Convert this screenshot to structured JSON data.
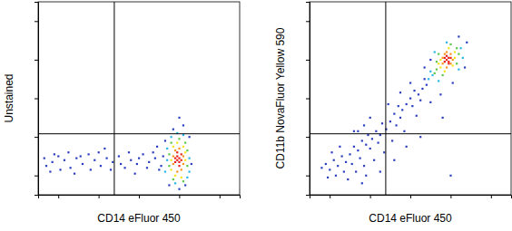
{
  "chart_data": [
    {
      "type": "scatter",
      "x_label": "CD14 eFluor 450",
      "y_label": "Unstained",
      "xlim": [
        0,
        100
      ],
      "ylim": [
        0,
        100
      ],
      "xticks": [
        10,
        30,
        50,
        70,
        90
      ],
      "yticks": [
        10,
        30,
        50,
        70,
        90
      ],
      "tick_labels": false,
      "gates": {
        "x": 37.8,
        "y": 31.6
      },
      "series": [
        {
          "color": "#2b3fc0",
          "x": [
            62,
            76,
            63,
            67,
            73,
            61,
            58,
            55,
            52,
            49,
            46,
            43,
            40,
            37,
            34,
            31,
            28,
            25,
            22,
            19,
            16,
            13,
            10,
            7,
            4,
            3,
            60,
            57,
            54,
            50,
            45,
            41,
            36,
            30,
            26,
            21,
            15,
            11,
            8,
            72,
            75,
            70,
            65,
            59,
            48,
            33,
            18,
            6,
            70
          ],
          "values": [
            20,
            16,
            28,
            34,
            5,
            15,
            19,
            17,
            21,
            16,
            18,
            14,
            20,
            17,
            19,
            15,
            18,
            21,
            16,
            19,
            14,
            18,
            20,
            17,
            15,
            19,
            13,
            22,
            14,
            19,
            22,
            16,
            13,
            22,
            13,
            20,
            22,
            13,
            21,
            36,
            30,
            3,
            5,
            25,
            11,
            24,
            11,
            12,
            40
          ]
        },
        {
          "color": "#29b6e8",
          "x": [
            64,
            75,
            64,
            75,
            66,
            72,
            68,
            63,
            74,
            69
          ],
          "values": [
            18,
            19,
            24,
            12,
            30,
            31,
            6,
            12,
            9,
            32
          ]
        },
        {
          "color": "#5cc84a",
          "x": [
            65,
            74,
            66,
            73,
            67,
            72,
            65,
            74,
            70
          ],
          "values": [
            21,
            15,
            27,
            27,
            8,
            7,
            15,
            23,
            29
          ]
        },
        {
          "color": "#f5e61a",
          "x": [
            66,
            73,
            67,
            72,
            68,
            71,
            66,
            73,
            69
          ],
          "values": [
            18,
            18,
            25,
            25,
            10,
            9,
            13,
            22,
            27
          ]
        },
        {
          "color": "#f7941d",
          "x": [
            67,
            72,
            68,
            71,
            67,
            72,
            70,
            69
          ],
          "values": [
            16,
            16,
            23,
            13,
            20,
            20,
            24,
            12
          ]
        },
        {
          "color": "#e8231a",
          "x": [
            69,
            70,
            68,
            70,
            69,
            71,
            68,
            70,
            69,
            71
          ],
          "values": [
            18,
            19,
            17,
            17,
            20,
            18,
            19,
            15,
            22,
            21
          ]
        }
      ]
    },
    {
      "type": "scatter",
      "x_label": "CD14 eFluor 450",
      "y_label": "CD11b NovaFluor Yellow 590",
      "xlim": [
        0,
        100
      ],
      "ylim": [
        0,
        100
      ],
      "xticks": [
        10,
        30,
        50,
        70,
        90
      ],
      "yticks": [
        10,
        30,
        50,
        70,
        90
      ],
      "tick_labels": false,
      "gates": {
        "x": 37.8,
        "y": 31.6
      },
      "series": [
        {
          "color": "#2b3fc0",
          "x": [
            58,
            56,
            57,
            54,
            52,
            55,
            50,
            48,
            51,
            46,
            44,
            45,
            42,
            40,
            43,
            38,
            36,
            35,
            33,
            31,
            34,
            29,
            28,
            26,
            30,
            24,
            22,
            25,
            20,
            18,
            21,
            16,
            14,
            12,
            17,
            10,
            13,
            8,
            19,
            23,
            27,
            15,
            11,
            9,
            6,
            26,
            32,
            37,
            41,
            47,
            53,
            60,
            65,
            71,
            77,
            78,
            74,
            60,
            57,
            50,
            45,
            39,
            30,
            27,
            22,
            35,
            42,
            48,
            55,
            66,
            70,
            28,
            24
          ],
          "values": [
            57,
            55,
            60,
            52,
            54,
            49,
            50,
            47,
            46,
            44,
            46,
            40,
            42,
            38,
            36,
            34,
            37,
            31,
            33,
            29,
            27,
            31,
            26,
            28,
            24,
            23,
            25,
            19,
            21,
            17,
            16,
            20,
            15,
            18,
            12,
            13,
            10,
            16,
            8,
            12,
            15,
            25,
            22,
            9,
            14,
            6,
            18,
            22,
            28,
            33,
            41,
            48,
            52,
            58,
            66,
            79,
            82,
            70,
            66,
            58,
            53,
            47,
            40,
            36,
            33,
            12,
            18,
            25,
            30,
            40,
            10,
            10,
            33
          ]
        },
        {
          "color": "#29b6e8",
          "x": [
            61,
            75,
            60,
            74,
            64,
            68,
            59,
            76,
            62
          ],
          "values": [
            62,
            76,
            64,
            65,
            59,
            79,
            60,
            71,
            74
          ]
        },
        {
          "color": "#5cc84a",
          "x": [
            63,
            73,
            63,
            73,
            66,
            70,
            62,
            74,
            64
          ],
          "values": [
            65,
            76,
            69,
            68,
            62,
            78,
            63,
            73,
            73
          ]
        },
        {
          "color": "#f5e61a",
          "x": [
            65,
            72,
            65,
            71,
            67,
            69,
            64,
            72
          ],
          "values": [
            66,
            74,
            70,
            67,
            64,
            76,
            68,
            71
          ]
        },
        {
          "color": "#f7941d",
          "x": [
            66,
            70,
            67,
            70,
            66,
            71,
            68,
            68
          ],
          "values": [
            68,
            73,
            73,
            68,
            71,
            70,
            66,
            74
          ]
        },
        {
          "color": "#e8231a",
          "x": [
            68,
            69,
            67,
            69,
            68,
            70,
            67,
            69
          ],
          "values": [
            70,
            71,
            69,
            69,
            72,
            71,
            71,
            68
          ]
        }
      ]
    }
  ]
}
